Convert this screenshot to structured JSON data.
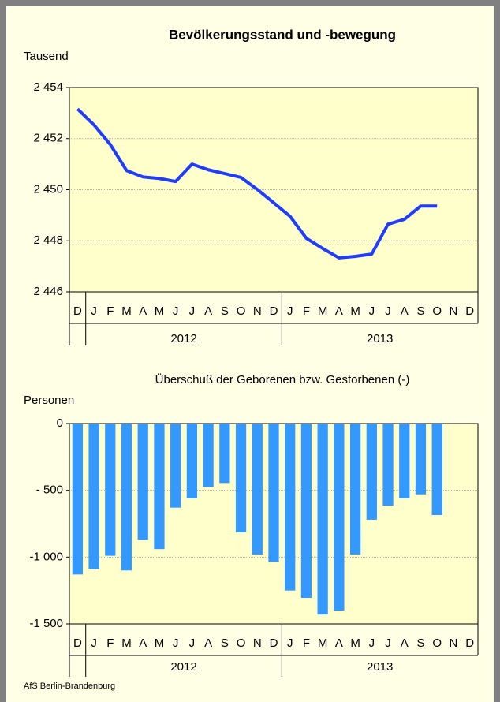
{
  "title": "Bevölkerungsstand und -bewegung",
  "source": "AfS Berlin-Brandenburg",
  "chart_data": [
    {
      "type": "line",
      "ylabel": "Tausend",
      "categories": [
        "D",
        "J",
        "F",
        "M",
        "A",
        "M",
        "J",
        "J",
        "A",
        "S",
        "O",
        "N",
        "D",
        "J",
        "F",
        "M",
        "A",
        "M",
        "J",
        "J",
        "A",
        "S",
        "O",
        "N",
        "D"
      ],
      "years": [
        "2012",
        "2013"
      ],
      "series": [
        {
          "name": "Bevölkerungsstand",
          "color": "#1f3cff",
          "values": [
            2453.16,
            2452.54,
            2451.77,
            2450.75,
            2450.5,
            2450.44,
            2450.32,
            2451.0,
            2450.78,
            2450.63,
            2450.48,
            2450.01,
            2449.49,
            2448.96,
            2448.1,
            2447.7,
            2447.33,
            2447.39,
            2447.48,
            2448.65,
            2448.84,
            2449.36,
            2449.36,
            null,
            null
          ]
        }
      ],
      "ylim": [
        2446,
        2454
      ],
      "yticks": [
        {
          "value": 2446,
          "label": "2 446"
        },
        {
          "value": 2448,
          "label": "2 448"
        },
        {
          "value": 2450,
          "label": "2 450"
        },
        {
          "value": 2452,
          "label": "2 452"
        },
        {
          "value": 2454,
          "label": "2 454"
        }
      ],
      "grid": true
    },
    {
      "type": "bar",
      "title": "Überschuß der Geborenen bzw. Gestorbenen (-)",
      "ylabel": "Personen",
      "categories": [
        "D",
        "J",
        "F",
        "M",
        "A",
        "M",
        "J",
        "J",
        "A",
        "S",
        "O",
        "N",
        "D",
        "J",
        "F",
        "M",
        "A",
        "M",
        "J",
        "J",
        "A",
        "S",
        "O",
        "N",
        "D"
      ],
      "years": [
        "2012",
        "2013"
      ],
      "series": [
        {
          "name": "Überschuß",
          "color": "#3399ff",
          "values": [
            -1130,
            -1090,
            -990,
            -1100,
            -870,
            -940,
            -630,
            -560,
            -475,
            -445,
            -815,
            -980,
            -1035,
            -1250,
            -1305,
            -1430,
            -1400,
            -980,
            -720,
            -615,
            -560,
            -530,
            -685,
            null,
            null
          ]
        }
      ],
      "ylim": [
        -1500,
        0
      ],
      "yticks": [
        {
          "value": -1500,
          "label": "-1 500"
        },
        {
          "value": -1000,
          "label": "-1 000"
        },
        {
          "value": -500,
          "label": "- 500"
        },
        0
      ],
      "grid": true
    }
  ]
}
